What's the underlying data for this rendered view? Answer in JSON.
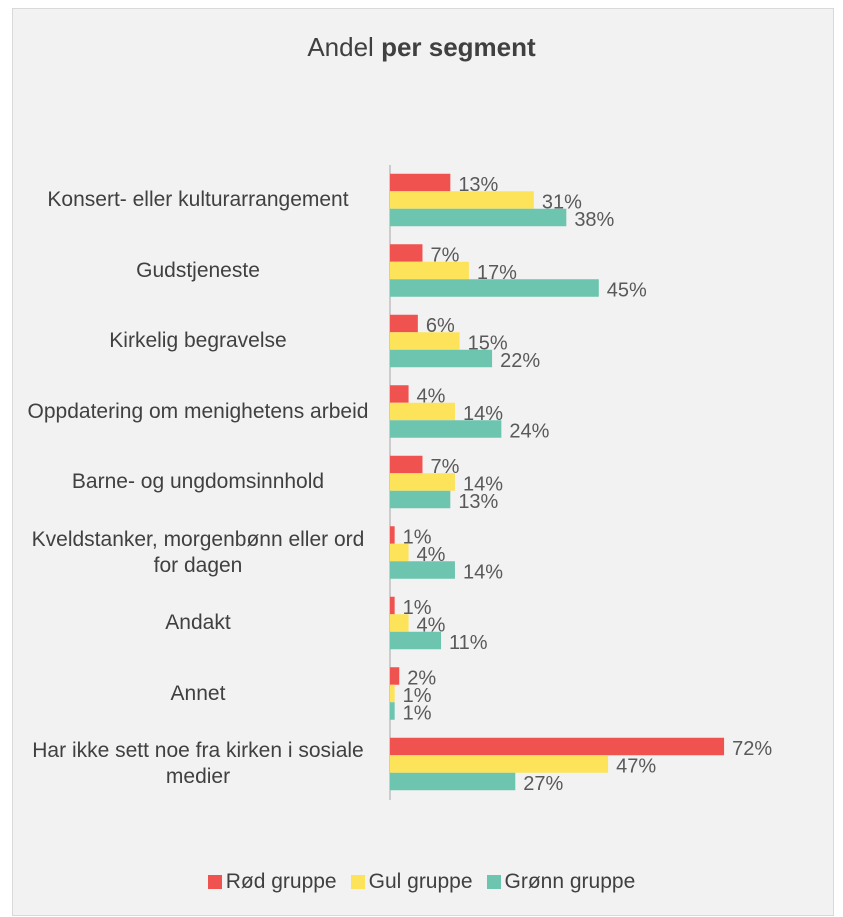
{
  "chart_data": {
    "type": "bar",
    "orientation": "horizontal",
    "title": "Andel",
    "title_bold": "per segment",
    "categories": [
      "Konsert- eller kulturarrangement",
      "Gudstjeneste",
      "Kirkelig begravelse",
      "Oppdatering om menighetens arbeid",
      "Barne- og ungdomsinnhold",
      "Kveldstanker, morgenbønn eller ord for dagen",
      "Andakt",
      "Annet",
      "Har ikke sett noe fra kirken i sosiale medier"
    ],
    "series": [
      {
        "name": "Rød gruppe",
        "color": "#f0524f",
        "values": [
          13,
          7,
          6,
          4,
          7,
          1,
          1,
          2,
          72
        ],
        "value_labels": [
          "13%",
          "7%",
          "6%",
          "4%",
          "7%",
          "1%",
          "1%",
          "2%",
          "72%"
        ]
      },
      {
        "name": "Gul gruppe",
        "color": "#fde35a",
        "values": [
          31,
          17,
          15,
          14,
          14,
          4,
          4,
          1,
          47
        ],
        "value_labels": [
          "31%",
          "17%",
          "15%",
          "14%",
          "14%",
          "4%",
          "4%",
          "1%",
          "47%"
        ]
      },
      {
        "name": "Grønn gruppe",
        "color": "#6dc5b0",
        "values": [
          38,
          45,
          22,
          24,
          13,
          14,
          11,
          1,
          27
        ],
        "value_labels": [
          "38%",
          "45%",
          "22%",
          "24%",
          "13%",
          "14%",
          "11%",
          "1%",
          "27%"
        ]
      }
    ],
    "legend": "bottom"
  }
}
